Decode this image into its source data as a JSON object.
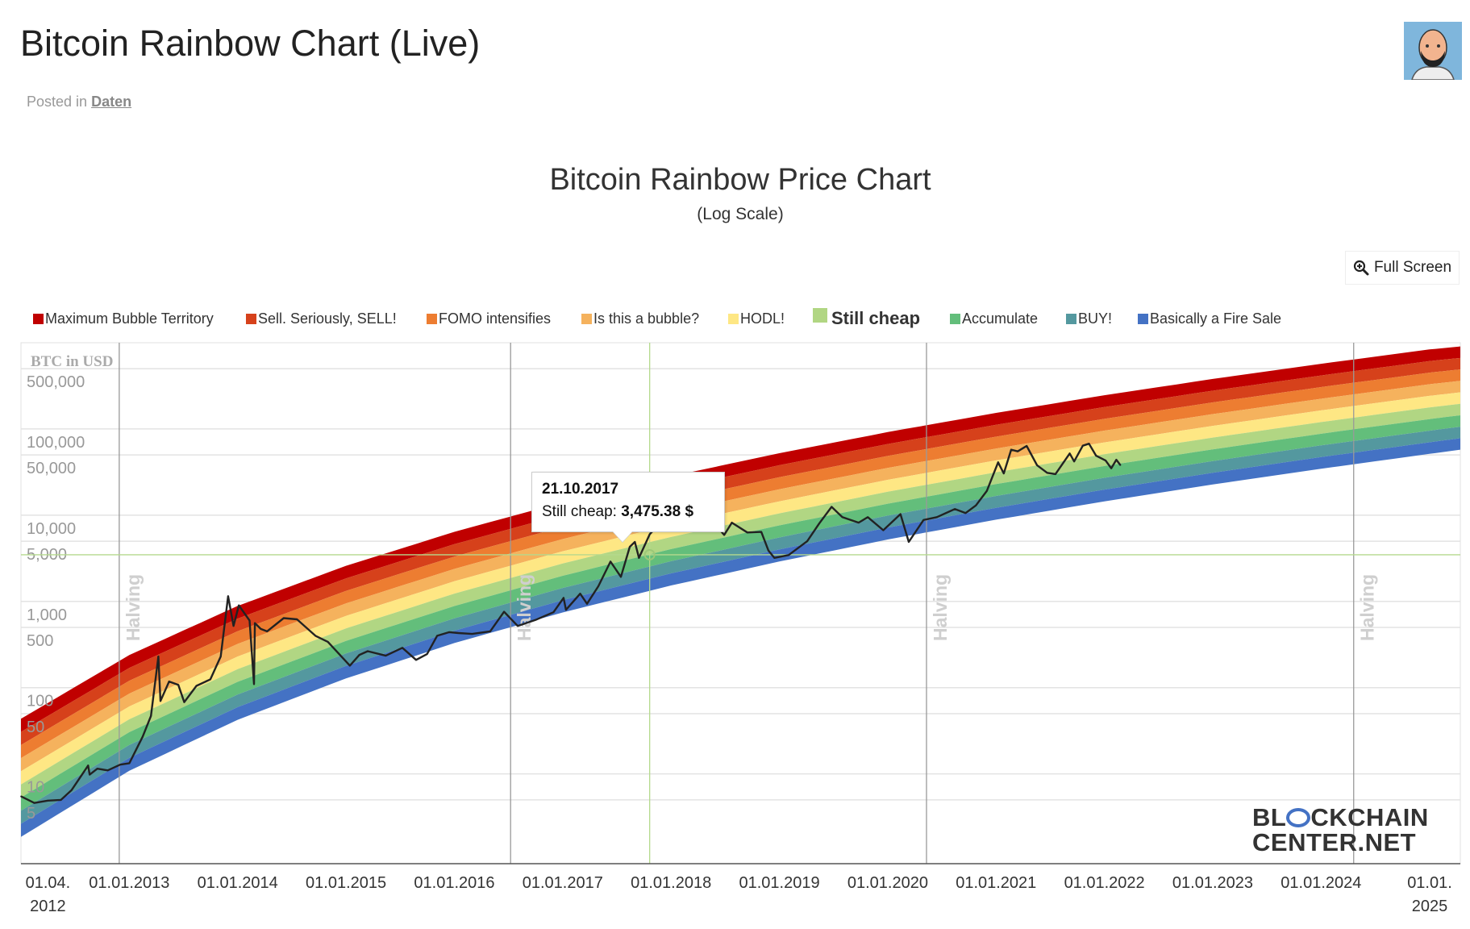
{
  "page": {
    "title": "Bitcoin Rainbow Chart (Live)",
    "posted_in_label": "Posted in",
    "posted_in_link": "Daten",
    "full_screen_label": "Full Screen",
    "watermark": {
      "line1a": "BL",
      "line1b": "CKCHAIN",
      "line2": "CENTER.NET"
    }
  },
  "chart_data": {
    "type": "line",
    "title": "Bitcoin Rainbow Price Chart",
    "subtitle": "(Log Scale)",
    "ylabel": "BTC in USD",
    "y_scale": "log",
    "ylim": [
      0.91,
      1000000
    ],
    "xlim": [
      "2012-01-01",
      "2025-04-15"
    ],
    "grid": true,
    "legend_position": "top",
    "x_ticks": [
      {
        "date": "2012-04-01",
        "label": "01.04.",
        "label2": "2012"
      },
      {
        "date": "2013-01-01",
        "label": "01.01.2013"
      },
      {
        "date": "2014-01-01",
        "label": "01.01.2014"
      },
      {
        "date": "2015-01-01",
        "label": "01.01.2015"
      },
      {
        "date": "2016-01-01",
        "label": "01.01.2016"
      },
      {
        "date": "2017-01-01",
        "label": "01.01.2017"
      },
      {
        "date": "2018-01-01",
        "label": "01.01.2018"
      },
      {
        "date": "2019-01-01",
        "label": "01.01.2019"
      },
      {
        "date": "2020-01-01",
        "label": "01.01.2020"
      },
      {
        "date": "2021-01-01",
        "label": "01.01.2021"
      },
      {
        "date": "2022-01-01",
        "label": "01.01.2022"
      },
      {
        "date": "2023-01-01",
        "label": "01.01.2023"
      },
      {
        "date": "2024-01-01",
        "label": "01.01.2024"
      },
      {
        "date": "2025-01-01",
        "label": "01.01.",
        "label2": "2025"
      }
    ],
    "y_ticks": [
      {
        "value": 500000,
        "label": "500,000"
      },
      {
        "value": 100000,
        "label": "100,000"
      },
      {
        "value": 50000,
        "label": "50,000"
      },
      {
        "value": 10000,
        "label": "10,000"
      },
      {
        "value": 5000,
        "label": "5,000"
      },
      {
        "value": 1000,
        "label": "1,000"
      },
      {
        "value": 500,
        "label": "500"
      },
      {
        "value": 100,
        "label": "100"
      },
      {
        "value": 50,
        "label": "50"
      },
      {
        "value": 10,
        "label": "10"
      },
      {
        "value": 5,
        "label": "5"
      }
    ],
    "bands": [
      {
        "name": "Maximum Bubble Territory",
        "color": "#c00000"
      },
      {
        "name": "Sell. Seriously, SELL!",
        "color": "#d6411b"
      },
      {
        "name": "FOMO intensifies",
        "color": "#ed7d31"
      },
      {
        "name": "Is this a bubble?",
        "color": "#f5b25d"
      },
      {
        "name": "HODL!",
        "color": "#fee784"
      },
      {
        "name": "Still cheap",
        "color": "#b1d683",
        "highlighted": true
      },
      {
        "name": "Accumulate",
        "color": "#63be7b"
      },
      {
        "name": "BUY!",
        "color": "#54989f"
      },
      {
        "name": "Basically a Fire Sale",
        "color": "#4472c4"
      }
    ],
    "band_envelope": {
      "dates": [
        "2012-01-01",
        "2013-01-01",
        "2014-01-01",
        "2015-01-01",
        "2016-01-01",
        "2017-01-01",
        "2018-01-01",
        "2019-01-01",
        "2020-01-01",
        "2021-01-01",
        "2022-01-01",
        "2023-01-01",
        "2024-01-01",
        "2025-01-01",
        "2025-04-15"
      ],
      "lower": [
        1.86,
        10.9,
        42.4,
        128,
        329,
        745,
        1531,
        2904,
        5224,
        8872,
        14454,
        22699,
        34595,
        51404,
        57500
      ],
      "upper": [
        43.6,
        239,
        887,
        2588,
        6412,
        14093,
        28248,
        52360,
        92045,
        153500,
        246000,
        380200,
        570200,
        835600,
        905000
      ]
    },
    "halvings": {
      "label": "Halving",
      "dates": [
        "2012-11-28",
        "2016-07-09",
        "2020-05-11",
        "2024-04-20"
      ]
    },
    "series": [
      {
        "dates": [
          "2012-01-01",
          "2012-02-15",
          "2012-04-01",
          "2012-05-15",
          "2012-06-20",
          "2012-08-15",
          "2012-08-20",
          "2012-09-15",
          "2012-10-20",
          "2012-12-01",
          "2013-01-01",
          "2013-02-15",
          "2013-03-15",
          "2013-04-09",
          "2013-04-16",
          "2013-05-15",
          "2013-06-15",
          "2013-07-05",
          "2013-08-15",
          "2013-10-01",
          "2013-11-05",
          "2013-11-30",
          "2013-12-18",
          "2014-01-05",
          "2014-02-10",
          "2014-02-25",
          "2014-02-28",
          "2014-03-20",
          "2014-04-10",
          "2014-06-05",
          "2014-07-20",
          "2014-09-20",
          "2014-11-01",
          "2015-01-14",
          "2015-02-15",
          "2015-03-15",
          "2015-05-15",
          "2015-07-10",
          "2015-08-25",
          "2015-10-01",
          "2015-11-04",
          "2015-12-15",
          "2016-01-15",
          "2016-03-01",
          "2016-05-01",
          "2016-06-17",
          "2016-08-02",
          "2016-10-01",
          "2016-12-01",
          "2017-01-04",
          "2017-01-12",
          "2017-03-01",
          "2017-03-24",
          "2017-05-01",
          "2017-06-11",
          "2017-07-16",
          "2017-08-15",
          "2017-09-01",
          "2017-09-15",
          "2017-10-21",
          "2017-11-10",
          "2017-12-17",
          "2018-01-15",
          "2018-02-06",
          "2018-03-05",
          "2018-04-06",
          "2018-05-05",
          "2018-06-29",
          "2018-07-25",
          "2018-09-15",
          "2018-11-01",
          "2018-11-25",
          "2018-12-15",
          "2019-02-01",
          "2019-04-05",
          "2019-05-15",
          "2019-06-26",
          "2019-08-01",
          "2019-09-25",
          "2019-10-26",
          "2019-12-17",
          "2020-02-13",
          "2020-03-12",
          "2020-05-01",
          "2020-06-15",
          "2020-08-15",
          "2020-09-20",
          "2020-10-25",
          "2020-12-01",
          "2021-01-08",
          "2021-01-27",
          "2021-02-21",
          "2021-03-15",
          "2021-04-14",
          "2021-05-19",
          "2021-06-22",
          "2021-07-20",
          "2021-09-06",
          "2021-09-21",
          "2021-10-20",
          "2021-11-10",
          "2021-12-04",
          "2022-01-05",
          "2022-01-24",
          "2022-02-10",
          "2022-02-24"
        ],
        "values": [
          5.5,
          4.6,
          4.9,
          5.0,
          6.5,
          12.5,
          9.8,
          11.5,
          11.0,
          12.8,
          13.3,
          27,
          47,
          230,
          70,
          118,
          108,
          68,
          105,
          125,
          230,
          1150,
          520,
          900,
          600,
          110,
          560,
          480,
          450,
          640,
          620,
          400,
          340,
          180,
          240,
          265,
          235,
          290,
          210,
          245,
          400,
          440,
          430,
          420,
          450,
          760,
          520,
          610,
          750,
          1100,
          800,
          1230,
          940,
          1500,
          2900,
          1930,
          4300,
          4900,
          3200,
          6000,
          7100,
          19500,
          11000,
          6900,
          11500,
          6800,
          9800,
          5900,
          8200,
          6300,
          6400,
          3900,
          3200,
          3450,
          5000,
          8000,
          12500,
          9500,
          8200,
          9500,
          6700,
          10300,
          4900,
          8800,
          9500,
          11800,
          10600,
          13000,
          19200,
          41000,
          30500,
          57500,
          55000,
          63500,
          38000,
          31000,
          30000,
          52000,
          42000,
          64000,
          67500,
          49000,
          43000,
          35000,
          44000,
          38000
        ]
      }
    ],
    "crosshair": {
      "date": "2017-10-21",
      "value": 3475.38
    },
    "tooltip": {
      "date": "21.10.2017",
      "label": "Still cheap:",
      "value": "3,475.38 $"
    }
  }
}
